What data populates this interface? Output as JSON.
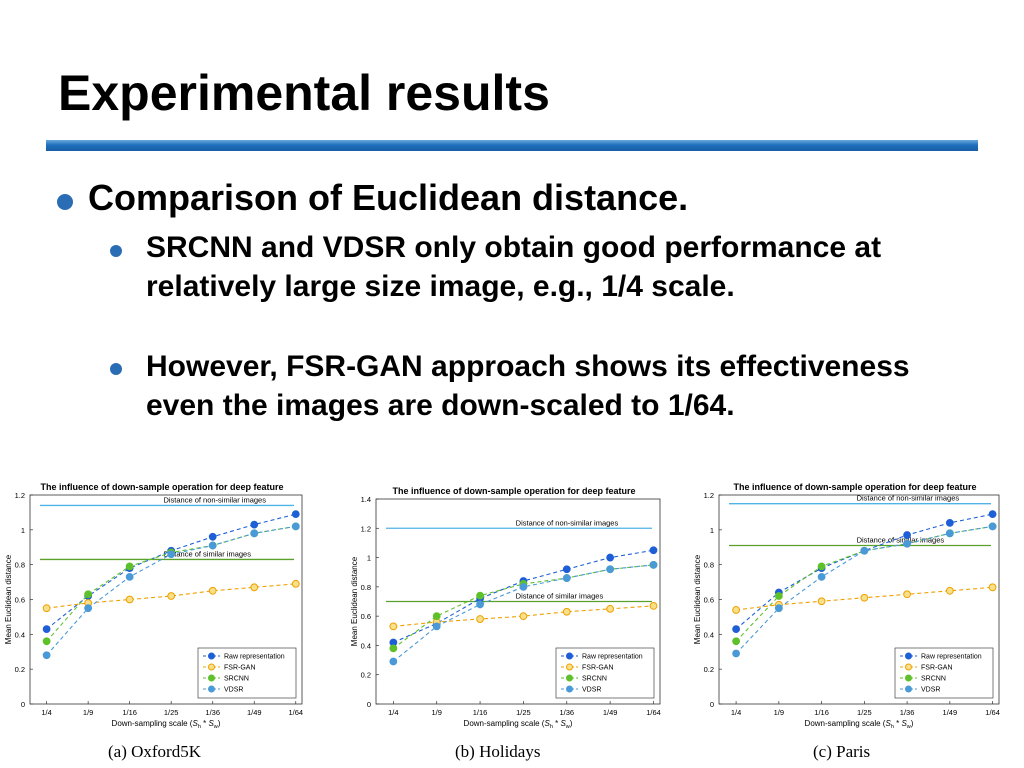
{
  "slide": {
    "title": "Experimental results",
    "bullet1": "Comparison of Euclidean distance.",
    "sub_bullets": [
      "SRCNN and VDSR only obtain good performance at relatively large size image, e.g., 1/4 scale.",
      "However, FSR-GAN approach shows its effectiveness even the images are down-scaled to 1/64."
    ],
    "bullet_color": "#2a6db4",
    "rule_color": "#1f6fbd"
  },
  "chart_data": [
    {
      "type": "line",
      "title": "The influence of down-sample operation for deep feature",
      "caption": "(a)  Oxford5K",
      "xlabel": "Down-sampling scale (S_h * S_w)",
      "ylabel": "Mean Euclidean distance",
      "categories": [
        "1/4",
        "1/9",
        "1/16",
        "1/25",
        "1/36",
        "1/49",
        "1/64"
      ],
      "x": [
        4,
        9,
        16,
        25,
        36,
        49,
        64
      ],
      "ylim": [
        0,
        1.2
      ],
      "yticks": [
        "0",
        "0.2",
        "0.4",
        "0.6",
        "0.8",
        "1",
        "1.2"
      ],
      "series": [
        {
          "name": "Raw representation",
          "color": "#1f5fd6",
          "values": [
            0.43,
            0.62,
            0.78,
            0.88,
            0.96,
            1.03,
            1.09
          ]
        },
        {
          "name": "FSR-GAN",
          "color": "#f0a000",
          "values": [
            0.55,
            0.58,
            0.6,
            0.62,
            0.65,
            0.67,
            0.69
          ]
        },
        {
          "name": "SRCNN",
          "color": "#5ec02a",
          "values": [
            0.36,
            0.63,
            0.79,
            0.87,
            0.91,
            0.98,
            1.02
          ]
        },
        {
          "name": "VDSR",
          "color": "#4a9ad8",
          "values": [
            0.28,
            0.55,
            0.73,
            0.86,
            0.91,
            0.98,
            1.02
          ]
        }
      ],
      "reference_lines": [
        {
          "label": "Distance of non-similar images",
          "value": 1.14,
          "color": "#4fb3e8"
        },
        {
          "label": "Distance of similar images",
          "value": 0.83,
          "color": "#5aa02c"
        }
      ],
      "legend": "bottom-right",
      "grid": false
    },
    {
      "type": "line",
      "title": "The influence of down-sample operation for deep feature",
      "caption": "(b)  Holidays",
      "xlabel": "Down-sampling scale (S_h * S_w)",
      "ylabel": "Mean Euclidean distance",
      "categories": [
        "1/4",
        "1/9",
        "1/16",
        "1/25",
        "1/36",
        "1/49",
        "1/64"
      ],
      "x": [
        4,
        9,
        16,
        25,
        36,
        49,
        64
      ],
      "ylim": [
        0,
        1.4
      ],
      "yticks": [
        "0",
        "0.2",
        "0.4",
        "0.6",
        "0.8",
        "1",
        "1.2",
        "1.4"
      ],
      "series": [
        {
          "name": "Raw representation",
          "color": "#1f5fd6",
          "values": [
            0.42,
            0.55,
            0.72,
            0.84,
            0.92,
            1.0,
            1.05
          ]
        },
        {
          "name": "FSR-GAN",
          "color": "#f0a000",
          "values": [
            0.53,
            0.56,
            0.58,
            0.6,
            0.63,
            0.65,
            0.67
          ]
        },
        {
          "name": "SRCNN",
          "color": "#5ec02a",
          "values": [
            0.38,
            0.6,
            0.74,
            0.82,
            0.86,
            0.92,
            0.95
          ]
        },
        {
          "name": "VDSR",
          "color": "#4a9ad8",
          "values": [
            0.29,
            0.53,
            0.68,
            0.8,
            0.86,
            0.92,
            0.95
          ]
        }
      ],
      "reference_lines": [
        {
          "label": "Distance of non-similar images",
          "value": 1.2,
          "color": "#4fb3e8"
        },
        {
          "label": "Distance of similar images",
          "value": 0.7,
          "color": "#5aa02c"
        }
      ],
      "legend": "bottom-right",
      "grid": false
    },
    {
      "type": "line",
      "title": "The influence of down-sample operation for deep feature",
      "caption": "(c)  Paris",
      "xlabel": "Down-sampling scale (S_h * S_w)",
      "ylabel": "Mean Euclidean distance",
      "categories": [
        "1/4",
        "1/9",
        "1/16",
        "1/25",
        "1/36",
        "1/49",
        "1/64"
      ],
      "x": [
        4,
        9,
        16,
        25,
        36,
        49,
        64
      ],
      "ylim": [
        0,
        1.2
      ],
      "yticks": [
        "0",
        "0.2",
        "0.4",
        "0.6",
        "0.8",
        "1",
        "1.2"
      ],
      "series": [
        {
          "name": "Raw representation",
          "color": "#1f5fd6",
          "values": [
            0.43,
            0.64,
            0.78,
            0.88,
            0.97,
            1.04,
            1.09
          ]
        },
        {
          "name": "FSR-GAN",
          "color": "#f0a000",
          "values": [
            0.54,
            0.57,
            0.59,
            0.61,
            0.63,
            0.65,
            0.67
          ]
        },
        {
          "name": "SRCNN",
          "color": "#5ec02a",
          "values": [
            0.36,
            0.62,
            0.79,
            0.88,
            0.92,
            0.98,
            1.02
          ]
        },
        {
          "name": "VDSR",
          "color": "#4a9ad8",
          "values": [
            0.29,
            0.55,
            0.73,
            0.88,
            0.92,
            0.98,
            1.02
          ]
        }
      ],
      "reference_lines": [
        {
          "label": "Distance of non-similar images",
          "value": 1.15,
          "color": "#4fb3e8"
        },
        {
          "label": "Distance of similar images",
          "value": 0.91,
          "color": "#5aa02c"
        }
      ],
      "legend": "bottom-right",
      "grid": false
    }
  ]
}
